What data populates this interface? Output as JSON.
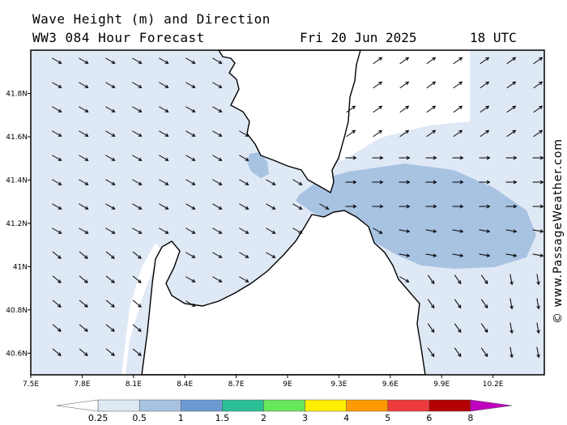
{
  "title": {
    "line1": "Wave Height (m) and Direction",
    "line2": "WW3 084 Hour Forecast",
    "date": "Fri 20 Jun 2025",
    "time": "18 UTC"
  },
  "credit": "© www.PassageWeather.com",
  "map": {
    "lon_range": [
      7.5,
      10.5
    ],
    "lat_range": [
      40.5,
      42.0
    ],
    "lon_ticks": [
      "7.5E",
      "7.8E",
      "8.1E",
      "8.4E",
      "8.7E",
      "9E",
      "9.3E",
      "9.6E",
      "9.9E",
      "10.2E"
    ],
    "lon_tick_values": [
      7.5,
      7.8,
      8.1,
      8.4,
      8.7,
      9.0,
      9.3,
      9.6,
      9.9,
      10.2
    ],
    "lat_ticks": [
      "41.8N",
      "41.6N",
      "41.4N",
      "41.2N",
      "41N",
      "40.8N",
      "40.6N"
    ],
    "lat_tick_values": [
      41.8,
      41.6,
      41.4,
      41.2,
      41.0,
      40.8,
      40.6
    ],
    "land_color": "#ffffff",
    "coast_color": "#000000",
    "arrow_color": "#000000"
  },
  "legend": {
    "levels": [
      "0.25",
      "0.5",
      "1",
      "1.5",
      "2",
      "3",
      "4",
      "5",
      "6",
      "8"
    ],
    "colors": [
      "#ffffff",
      "#dfe8f5",
      "#a8c3e2",
      "#6e9ad4",
      "#2bbf96",
      "#66e85a",
      "#ffee00",
      "#ff9900",
      "#ee3b3b",
      "#b40000",
      "#c000c0"
    ]
  }
}
